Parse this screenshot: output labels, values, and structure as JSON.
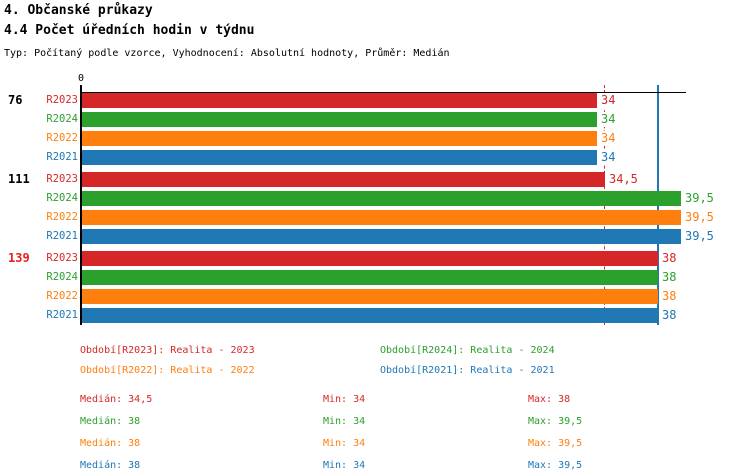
{
  "header": {
    "title1": "4. Občanské průkazy",
    "title2": "4.4 Počet úředních hodin v týdnu",
    "meta": "Typ: Počítaný podle vzorce, Vyhodnocení: Absolutní hodnoty, Průměr: Medián"
  },
  "chart_data": {
    "type": "bar",
    "orientation": "horizontal",
    "title": "4.4 Počet úředních hodin v týdnu",
    "x_axis": {
      "origin_label": "0",
      "xlim": [
        0,
        39.8
      ],
      "grid": false
    },
    "series_order": [
      "R2023",
      "R2024",
      "R2022",
      "R2021"
    ],
    "series_colors": {
      "R2023": "#d62728",
      "R2024": "#2ca02c",
      "R2022": "#ff7f0e",
      "R2021": "#1f77b4"
    },
    "groups": [
      {
        "label": "76",
        "label_color": "#000000",
        "values": {
          "R2023": 34,
          "R2024": 34,
          "R2022": 34,
          "R2021": 34
        }
      },
      {
        "label": "111",
        "label_color": "#000000",
        "values": {
          "R2023": 34.5,
          "R2024": 39.5,
          "R2022": 39.5,
          "R2021": 39.5
        }
      },
      {
        "label": "139",
        "label_color": "#e8211d",
        "values": {
          "R2023": 38,
          "R2024": 38,
          "R2022": 38,
          "R2021": 38
        }
      }
    ],
    "ref_lines": [
      {
        "value": 34.5,
        "color": "#d62728",
        "style": "dashed",
        "meaning": "Medián R2023"
      },
      {
        "value": 38,
        "color": "#1f77b4",
        "style": "solid",
        "meaning": "Medián R2021"
      }
    ]
  },
  "legend": {
    "items": [
      {
        "series": "R2023",
        "text": "Období[R2023]: Realita - 2023"
      },
      {
        "series": "R2024",
        "text": "Období[R2024]: Realita - 2024"
      },
      {
        "series": "R2022",
        "text": "Období[R2022]: Realita - 2022"
      },
      {
        "series": "R2021",
        "text": "Období[R2021]: Realita - 2021"
      }
    ]
  },
  "stats": {
    "rows": [
      {
        "series": "R2023",
        "median": "Medián: 34,5",
        "min": "Min: 34",
        "max": "Max: 38"
      },
      {
        "series": "R2024",
        "median": "Medián: 38",
        "min": "Min: 34",
        "max": "Max: 39,5"
      },
      {
        "series": "R2022",
        "median": "Medián: 38",
        "min": "Min: 34",
        "max": "Max: 39,5"
      },
      {
        "series": "R2021",
        "median": "Medián: 38",
        "min": "Min: 34",
        "max": "Max: 39,5"
      }
    ]
  }
}
